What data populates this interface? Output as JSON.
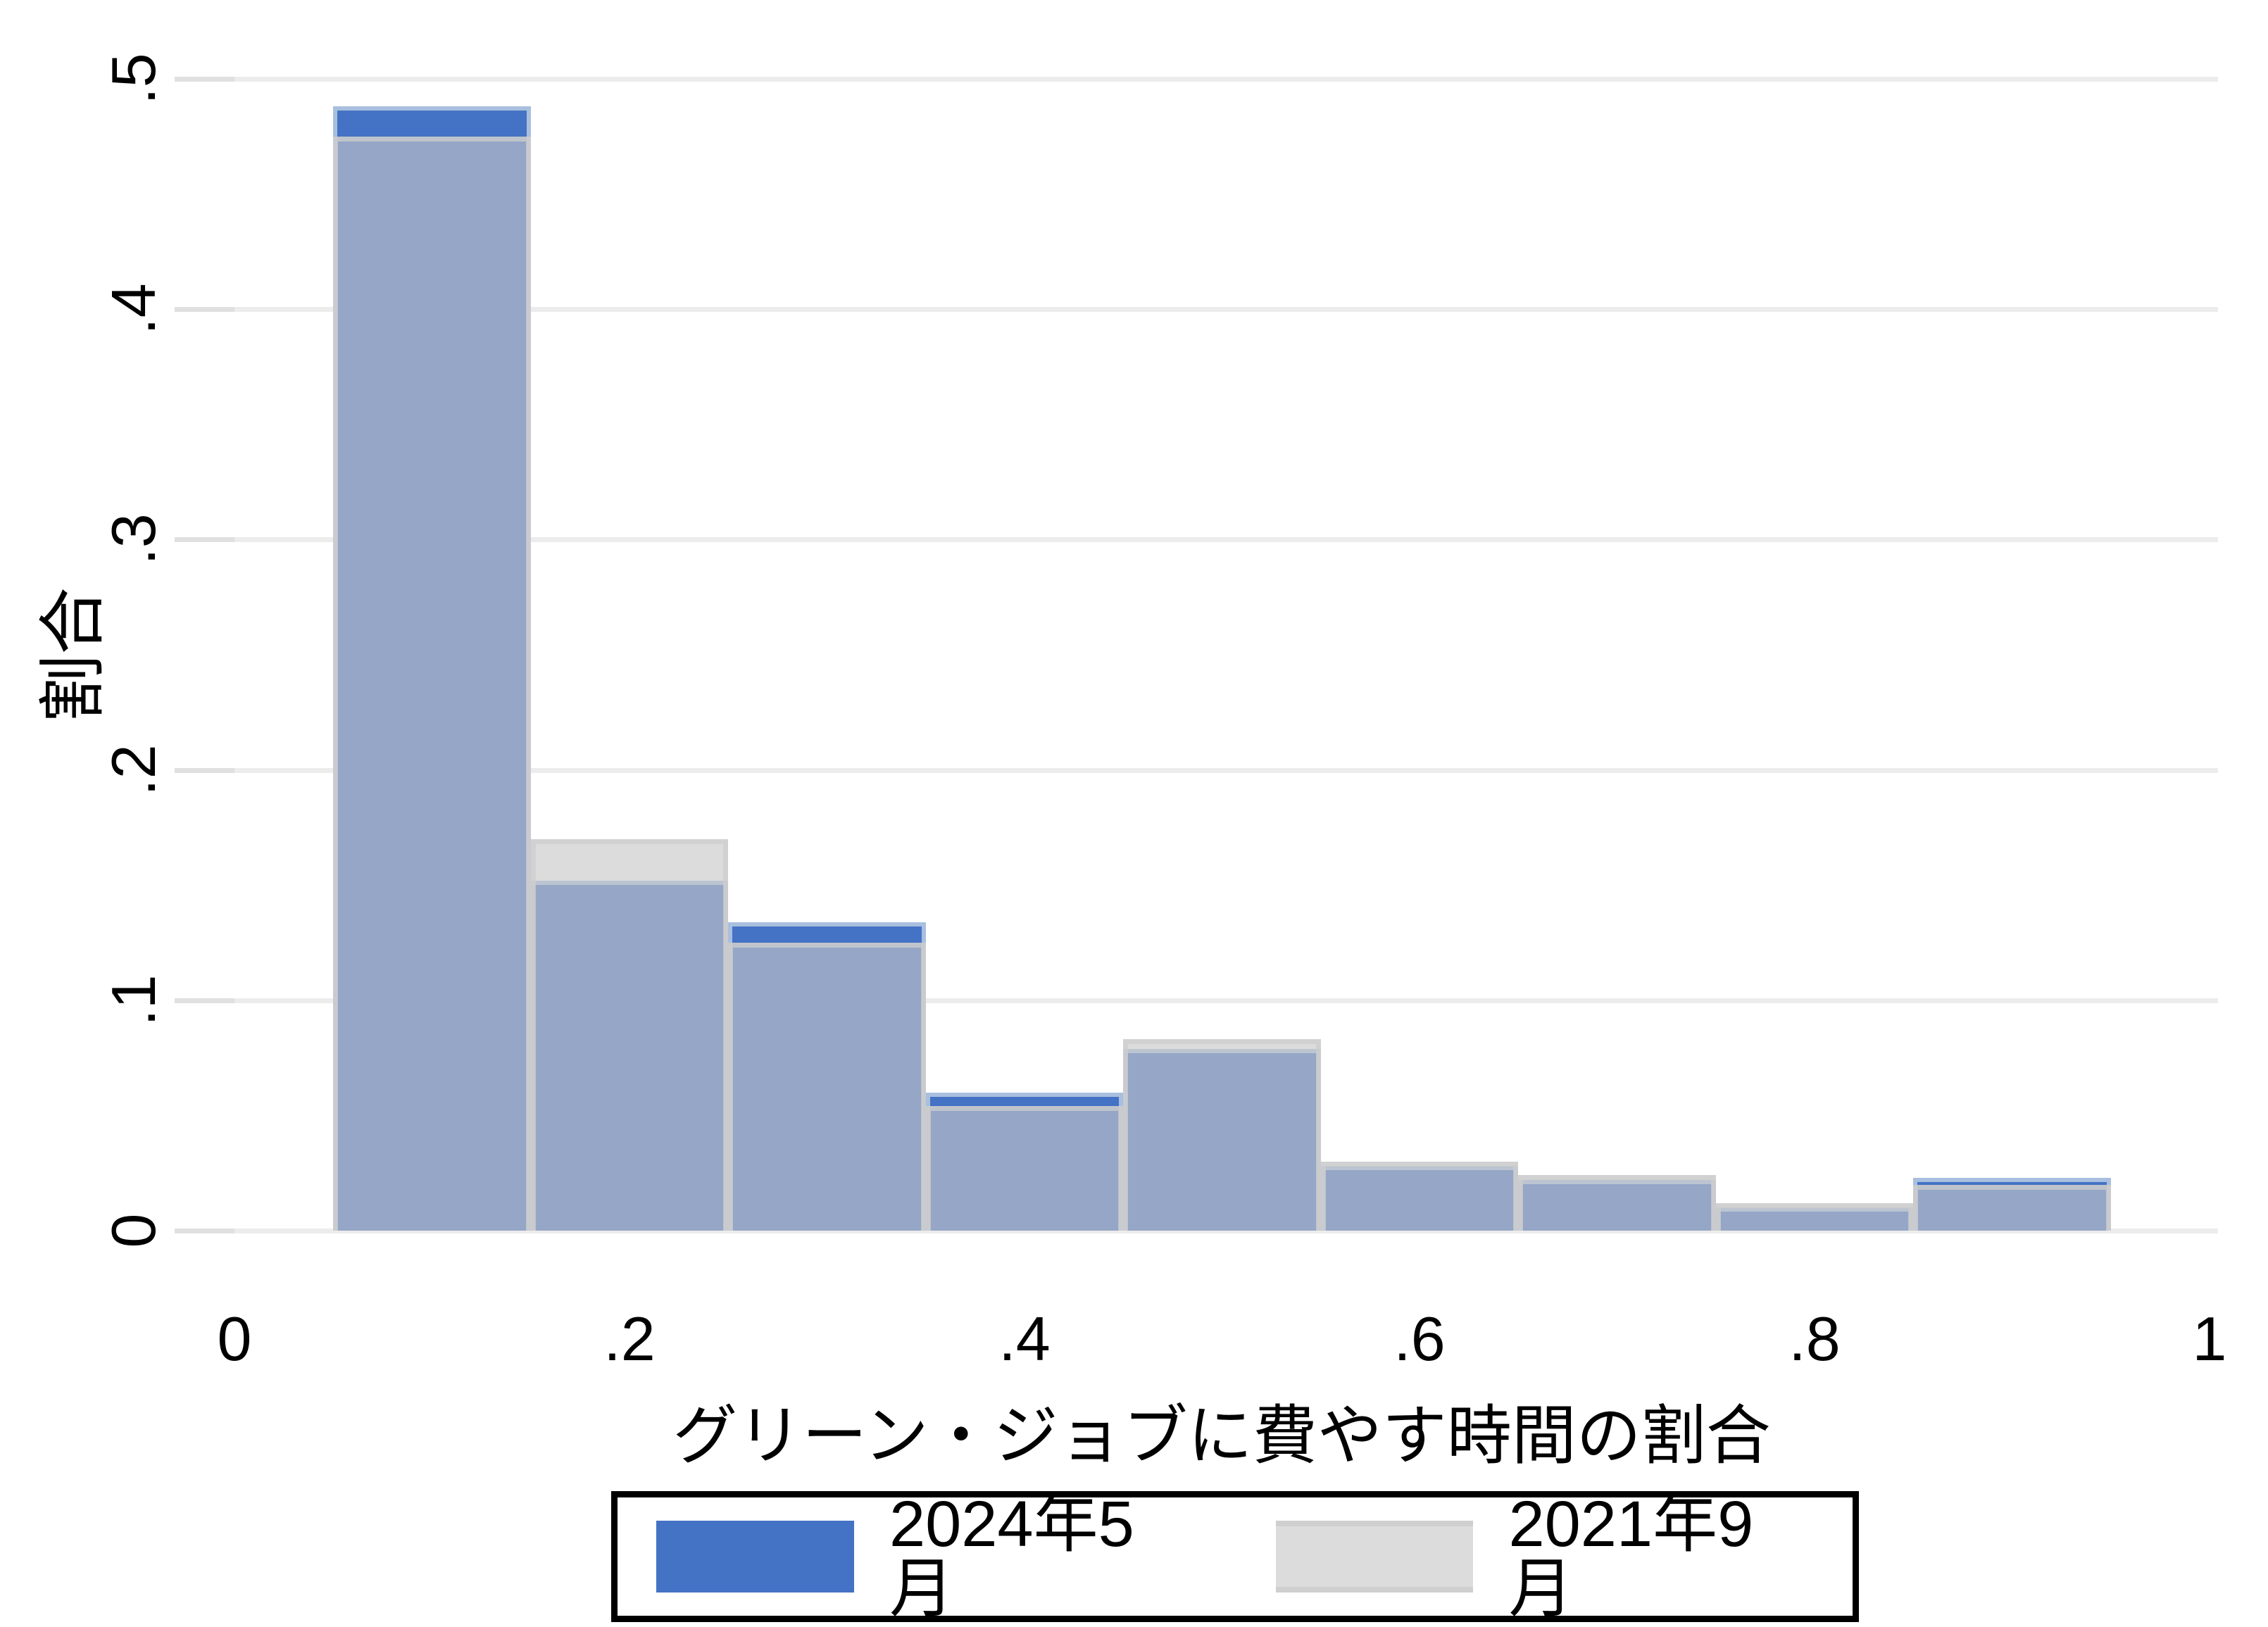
{
  "chart_data": {
    "type": "bar",
    "subtype": "overlaid-histogram",
    "title": "",
    "xlabel": "グリーン・ジョブに費やす時間の割合",
    "ylabel": "割合",
    "xlim": [
      0,
      1
    ],
    "ylim": [
      0,
      0.5
    ],
    "grid": "horizontal",
    "legend_position": "bottom",
    "bin_width": 0.1,
    "bin_edges": [
      0.05,
      0.15,
      0.25,
      0.35,
      0.45,
      0.55,
      0.65,
      0.75,
      0.85,
      0.95
    ],
    "series": [
      {
        "name": "2024年5月",
        "color": "#4472c4",
        "values": [
          0.488,
          0.152,
          0.134,
          0.06,
          0.079,
          0.028,
          0.022,
          0.01,
          0.023
        ]
      },
      {
        "name": "2021年9月",
        "color": "#dcdcdc",
        "values": [
          0.475,
          0.17,
          0.125,
          0.054,
          0.083,
          0.03,
          0.024,
          0.012,
          0.02
        ]
      }
    ],
    "overlap_color": "#94a6c9",
    "gridline_color": "#ececec",
    "x_ticks": {
      "values": [
        0,
        0.2,
        0.4,
        0.6,
        0.8,
        1
      ],
      "labels": [
        "0",
        ".2",
        ".4",
        ".6",
        ".8",
        "1"
      ]
    },
    "y_ticks": {
      "values": [
        0,
        0.1,
        0.2,
        0.3,
        0.4,
        0.5
      ],
      "labels": [
        "0",
        ".1",
        ".2",
        ".3",
        ".4",
        ".5"
      ]
    }
  },
  "legend": {
    "items": [
      {
        "label": "2024年5月",
        "swatch": "blue-swatch"
      },
      {
        "label": "2021年9月",
        "swatch": "gray-swatch"
      }
    ]
  }
}
